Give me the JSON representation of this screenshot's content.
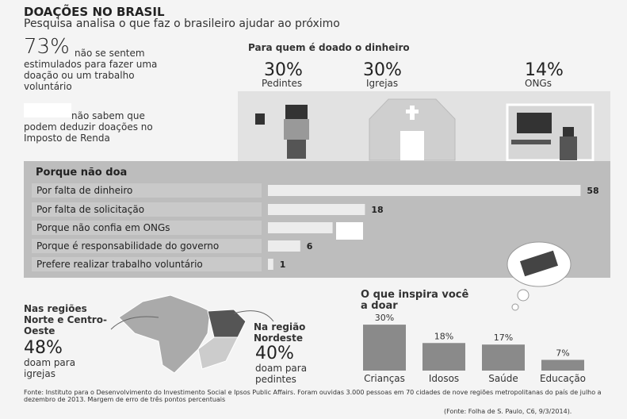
{
  "header": {
    "title": "DOAÇÕES NO BRASIL",
    "subtitle": "Pesquisa analisa o que faz o brasileiro ajudar ao próximo"
  },
  "stat_stimulus": {
    "value_label": "73%",
    "text": "não se sentem estimulados para fazer uma doação ou um trabalho voluntário"
  },
  "stat_tax": {
    "text": "não sabem que podem deduzir doações no Imposto de Renda"
  },
  "recipients": {
    "title": "Para quem é doado o dinheiro",
    "items": [
      {
        "value_label": "30%",
        "name": "Pedintes"
      },
      {
        "value_label": "30%",
        "name": "Igrejas"
      },
      {
        "value_label": "14%",
        "name": "ONGs"
      }
    ]
  },
  "reasons": {
    "title": "Porque não doa",
    "categories": [
      "Por falta de dinheiro",
      "Por falta de solicitação",
      "Porque não confia em ONGs",
      "Porque é responsabilidade do governo",
      "Prefere realizar trabalho voluntário"
    ],
    "values": [
      58,
      18,
      12,
      6,
      1
    ],
    "value_labels": [
      "58",
      "18",
      null,
      "6",
      "1"
    ]
  },
  "inspire": {
    "title": "O que inspira você a doar",
    "categories": [
      "Crianças",
      "Idosos",
      "Saúde",
      "Educação"
    ],
    "values": [
      30,
      18,
      17,
      7
    ],
    "value_labels": [
      "30%",
      "18%",
      "17%",
      "7%"
    ]
  },
  "regions": {
    "north": {
      "title": "Nas regiões Norte e Centro-Oeste",
      "value_label": "48%",
      "text": "doam para igrejas"
    },
    "northeast": {
      "title": "Na região Nordeste",
      "value_label": "40%",
      "text": "doam para pedintes"
    }
  },
  "footer": {
    "source": "Fonte: Instituto para o Desenvolvimento do Investimento Social e Ipsos Public Affairs. Foram ouvidas 3.000 pessoas em 70 cidades de nove regiões metropolitanas do país de julho a dezembro de 2013. Margem de erro de três pontos percentuais",
    "credit": "(Fonte: Folha de S. Paulo, C6, 9/3/2014)."
  }
}
